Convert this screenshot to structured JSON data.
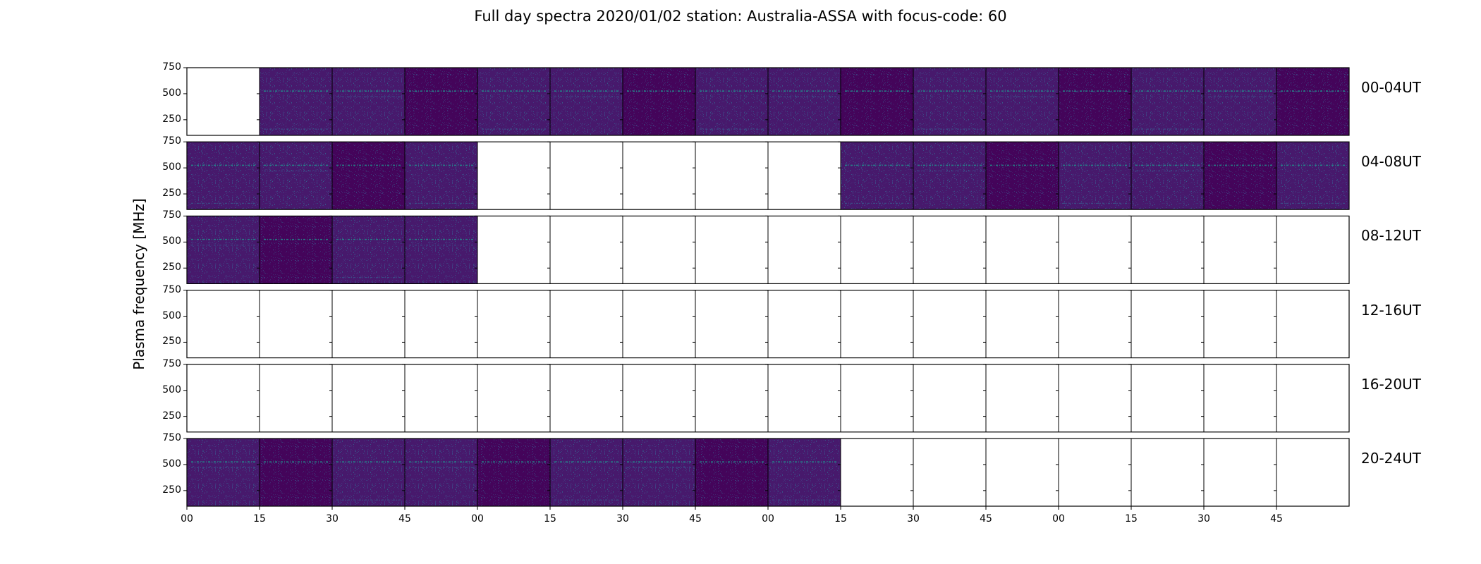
{
  "chart_data": {
    "type": "heatmap",
    "title": "Full day spectra 2020/01/02 station: Australia-ASSA with focus-code: 60",
    "ylabel": "Plasma frequency [MHz]",
    "xlabel": "",
    "ylim": [
      100,
      750
    ],
    "yticks": [
      "750",
      "500",
      "250"
    ],
    "xtick_labels": [
      "00",
      "15",
      "30",
      "45",
      "00",
      "15",
      "30",
      "45",
      "00",
      "15",
      "30",
      "45",
      "00",
      "15",
      "30",
      "45"
    ],
    "colormap": "viridis",
    "colors": {
      "low": "#440154",
      "mid": "#3b528b",
      "high": "#21918c",
      "peak": "#fde725"
    },
    "panels_per_row": 16,
    "panel_duration_minutes": 15,
    "rows": [
      {
        "label": "00-04UT",
        "filled": [
          0,
          1,
          1,
          1,
          1,
          1,
          1,
          1,
          1,
          1,
          1,
          1,
          1,
          1,
          1,
          1
        ]
      },
      {
        "label": "04-08UT",
        "filled": [
          1,
          1,
          1,
          1,
          0,
          0,
          0,
          0,
          0,
          1,
          1,
          1,
          1,
          1,
          1,
          1
        ]
      },
      {
        "label": "08-12UT",
        "filled": [
          1,
          1,
          1,
          1,
          0,
          0,
          0,
          0,
          0,
          0,
          0,
          0,
          0,
          0,
          0,
          0
        ]
      },
      {
        "label": "12-16UT",
        "filled": [
          0,
          0,
          0,
          0,
          0,
          0,
          0,
          0,
          0,
          0,
          0,
          0,
          0,
          0,
          0,
          0
        ]
      },
      {
        "label": "16-20UT",
        "filled": [
          0,
          0,
          0,
          0,
          0,
          0,
          0,
          0,
          0,
          0,
          0,
          0,
          0,
          0,
          0,
          0
        ]
      },
      {
        "label": "20-24UT",
        "filled": [
          1,
          1,
          1,
          1,
          1,
          1,
          1,
          1,
          1,
          0,
          0,
          0,
          0,
          0,
          0,
          0
        ]
      }
    ],
    "bright_lines_mhz": [
      525,
      470,
      160
    ],
    "grid": false,
    "legend": "none"
  }
}
